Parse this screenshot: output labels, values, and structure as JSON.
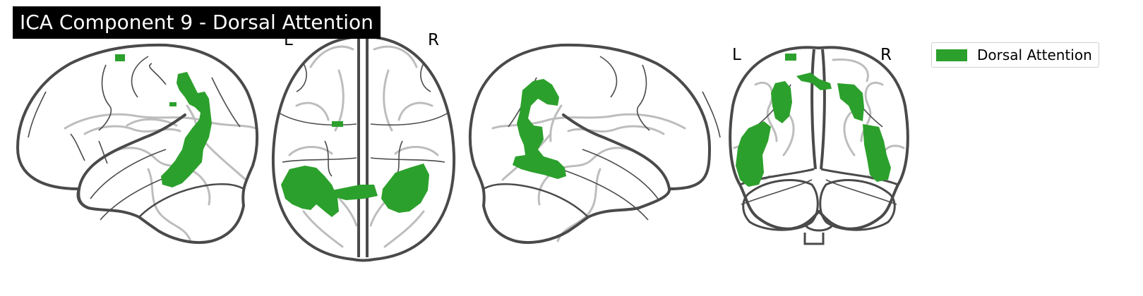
{
  "figure": {
    "title": "ICA Component 9 - Dorsal Attention"
  },
  "views": [
    {
      "name": "sagittal-left",
      "labels": []
    },
    {
      "name": "axial",
      "labels": [
        "L",
        "R"
      ]
    },
    {
      "name": "sagittal-right",
      "labels": []
    },
    {
      "name": "coronal",
      "labels": [
        "L",
        "R"
      ]
    }
  ],
  "legend": {
    "entries": [
      {
        "label": "Dorsal Attention",
        "color": "#2ca02c"
      }
    ]
  },
  "colors": {
    "network": "#2ca02c",
    "outline": "#4a4a4a",
    "inner_sulci": "#bdbdbd",
    "title_bg": "#000000",
    "title_fg": "#ffffff"
  }
}
